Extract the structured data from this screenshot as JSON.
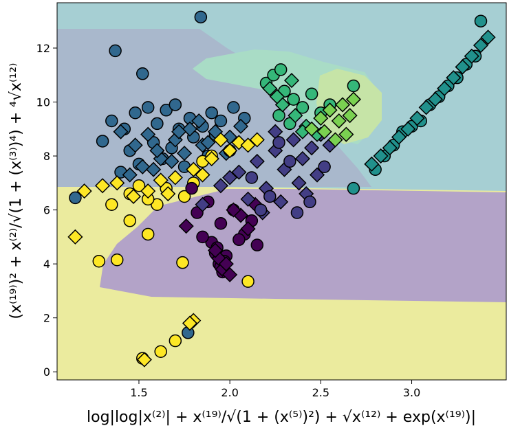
{
  "chart_data": {
    "type": "scatter",
    "xlabel": "log|log|x⁽²⁾| + x⁽¹⁹⁾/√(1 + (x⁽⁵⁾)²) + √x⁽¹²⁾ + exp(x⁽¹⁹⁾)|",
    "ylabel": "(x⁽¹⁹⁾)² + x⁽²⁾/√(1 + (x⁽³⁾)⁴) + ⁴√x⁽¹²⁾",
    "xlim": [
      1.05,
      3.52
    ],
    "ylim": [
      -0.3,
      13.68
    ],
    "xticks": [
      1.5,
      {
        "value": 2,
        "label": "2.0"
      },
      2.5,
      {
        "value": 3,
        "label": "3.0"
      }
    ],
    "yticks": [
      0,
      2,
      4,
      6,
      8,
      10,
      12
    ],
    "series": [
      {
        "marker": "circle",
        "color": "#31688e",
        "x": [
          1.37,
          1.52,
          1.84,
          1.15,
          1.77,
          1.35,
          1.42,
          1.48,
          1.55,
          1.6,
          1.65,
          1.72,
          1.78,
          1.85,
          1.9,
          1.95,
          2.02,
          2.08,
          1.45,
          1.58,
          1.68,
          1.8,
          1.92,
          1.5,
          1.63,
          1.75,
          1.88,
          1.3,
          1.4,
          1.7
        ],
        "y": [
          11.9,
          11.05,
          13.15,
          6.45,
          1.45,
          9.3,
          9.0,
          9.6,
          9.8,
          9.2,
          9.7,
          9.0,
          9.4,
          9.1,
          9.6,
          9.3,
          9.8,
          9.4,
          8.2,
          8.5,
          8.3,
          8.7,
          8.8,
          7.7,
          7.9,
          7.6,
          8.0,
          8.55,
          7.4,
          9.9
        ]
      },
      {
        "marker": "diamond",
        "color": "#31688e",
        "x": [
          1.4,
          1.48,
          1.55,
          1.62,
          1.7,
          1.78,
          1.85,
          1.92,
          2.0,
          2.06,
          1.52,
          1.6,
          1.68,
          1.75,
          1.83,
          1.9,
          1.45,
          1.58,
          1.72,
          1.88,
          1.98
        ],
        "y": [
          8.9,
          8.4,
          8.8,
          7.9,
          8.6,
          9.0,
          8.4,
          8.9,
          8.7,
          9.1,
          7.6,
          8.2,
          7.8,
          8.1,
          9.3,
          7.9,
          7.3,
          7.5,
          8.9,
          8.5,
          8.1
        ]
      },
      {
        "marker": "circle",
        "color": "#fde725",
        "x": [
          1.28,
          1.38,
          1.45,
          1.55,
          1.74,
          2.1,
          1.52,
          1.62,
          1.7,
          1.35,
          1.45,
          1.6,
          1.75,
          1.9,
          2.0,
          1.8,
          1.65,
          1.55,
          1.85,
          1.5
        ],
        "y": [
          4.1,
          4.15,
          5.6,
          5.1,
          4.05,
          3.35,
          0.5,
          0.75,
          1.15,
          6.2,
          6.6,
          6.2,
          6.5,
          8.0,
          8.2,
          7.0,
          6.8,
          6.4,
          7.8,
          6.9
        ]
      },
      {
        "marker": "diamond",
        "color": "#fde725",
        "x": [
          1.15,
          1.53,
          1.8,
          1.78,
          1.2,
          1.3,
          1.38,
          1.47,
          1.55,
          1.62,
          1.7,
          1.8,
          1.9,
          2.0,
          2.05,
          2.1,
          2.15,
          1.95,
          1.85,
          1.66
        ],
        "y": [
          5.0,
          0.45,
          1.9,
          1.8,
          6.7,
          6.9,
          7.0,
          6.5,
          6.7,
          7.1,
          7.2,
          7.5,
          7.9,
          8.2,
          8.5,
          8.4,
          8.6,
          8.6,
          7.3,
          6.6
        ]
      },
      {
        "marker": "circle",
        "color": "#440154",
        "x": [
          1.9,
          1.92,
          1.94,
          1.96,
          1.98,
          1.93,
          1.95,
          1.97,
          1.82,
          1.88,
          1.95,
          2.02,
          2.08,
          2.12,
          2.15,
          2.05,
          1.85,
          1.79
        ],
        "y": [
          4.8,
          4.4,
          4.0,
          3.7,
          4.3,
          4.6,
          3.9,
          4.1,
          5.9,
          6.3,
          5.5,
          6.0,
          5.1,
          5.6,
          4.7,
          4.9,
          5.0,
          6.8
        ]
      },
      {
        "marker": "diamond",
        "color": "#440154",
        "x": [
          1.94,
          1.96,
          1.98,
          2.0,
          1.92,
          2.06,
          2.1,
          2.14,
          2.02,
          1.76
        ],
        "y": [
          4.2,
          3.8,
          4.0,
          3.6,
          4.5,
          5.8,
          5.3,
          6.2,
          6.0,
          5.4
        ]
      },
      {
        "marker": "diamond",
        "color": "#433e85",
        "x": [
          1.85,
          1.95,
          2.05,
          2.15,
          2.25,
          2.3,
          2.35,
          2.4,
          2.45,
          2.5,
          2.55,
          2.2,
          2.1,
          2.0,
          2.28,
          2.38,
          2.18,
          2.42,
          2.25,
          2.48
        ],
        "y": [
          6.2,
          6.9,
          7.4,
          7.8,
          8.2,
          7.5,
          8.6,
          7.9,
          8.3,
          8.8,
          8.4,
          6.8,
          6.4,
          7.2,
          6.3,
          7.0,
          5.9,
          6.6,
          8.9,
          7.3
        ]
      },
      {
        "marker": "circle",
        "color": "#433e85",
        "x": [
          2.12,
          2.22,
          2.33,
          2.44,
          2.27,
          2.37,
          2.17,
          2.52
        ],
        "y": [
          7.2,
          6.5,
          7.8,
          6.3,
          8.5,
          5.9,
          6.0,
          7.6
        ]
      },
      {
        "marker": "circle",
        "color": "#35b779",
        "x": [
          2.2,
          2.24,
          2.28,
          2.3,
          2.35,
          2.4,
          2.45,
          2.5,
          2.55,
          2.27,
          2.33,
          2.68
        ],
        "y": [
          10.7,
          11.0,
          11.2,
          10.4,
          10.1,
          9.8,
          10.3,
          9.6,
          9.9,
          9.5,
          9.2,
          10.6
        ]
      },
      {
        "marker": "diamond",
        "color": "#35b779",
        "x": [
          2.22,
          2.29,
          2.36,
          2.42,
          2.48,
          2.34,
          2.26,
          2.4
        ],
        "y": [
          10.5,
          9.9,
          9.5,
          9.1,
          8.8,
          10.8,
          10.2,
          8.9
        ]
      },
      {
        "marker": "diamond",
        "color": "#7ad151",
        "x": [
          2.45,
          2.5,
          2.55,
          2.6,
          2.64,
          2.68,
          2.58,
          2.62,
          2.52,
          2.66
        ],
        "y": [
          9.0,
          9.4,
          9.7,
          9.3,
          8.8,
          10.1,
          8.6,
          9.9,
          8.9,
          9.5
        ]
      },
      {
        "marker": "circle",
        "color": "#21918c",
        "x": [
          2.68,
          2.8,
          2.85,
          2.9,
          3.0,
          3.1,
          3.2,
          3.3,
          3.38,
          2.95,
          3.05,
          3.15,
          3.25,
          3.35
        ],
        "y": [
          6.8,
          7.5,
          8.0,
          8.4,
          9.1,
          9.9,
          10.6,
          11.4,
          13.0,
          8.9,
          9.3,
          10.2,
          10.9,
          11.7
        ]
      },
      {
        "marker": "diamond",
        "color": "#21918c",
        "x": [
          2.78,
          2.83,
          2.88,
          2.93,
          2.98,
          3.03,
          3.08,
          3.13,
          3.18,
          3.23,
          3.28,
          3.33,
          3.38,
          3.42
        ],
        "y": [
          7.7,
          8.0,
          8.3,
          8.7,
          9.0,
          9.4,
          9.8,
          10.1,
          10.5,
          10.9,
          11.3,
          11.7,
          12.1,
          12.4
        ]
      }
    ]
  }
}
